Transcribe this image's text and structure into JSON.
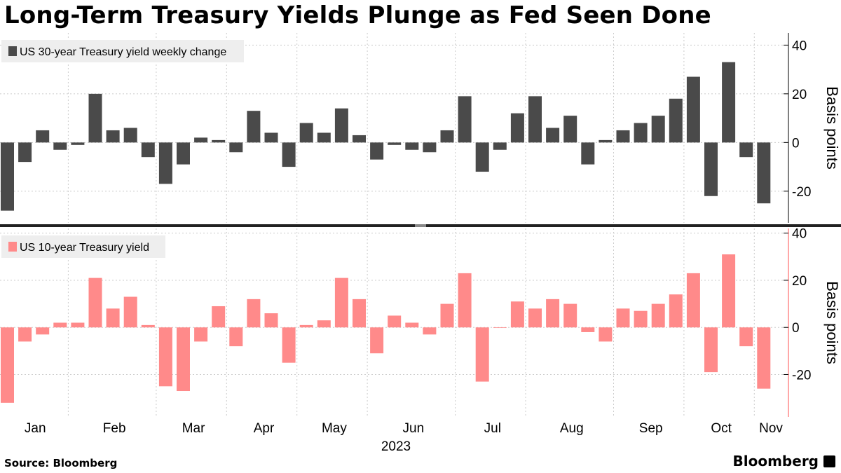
{
  "title": "Long-Term Treasury Yields Plunge as Fed Seen Done",
  "source": "Source:  Bloomberg",
  "brand": "Bloomberg",
  "colors": {
    "top_bars": "#4a4a4a",
    "bottom_bars": "#ff8a8a",
    "grid": "#cccccc",
    "legend_bg": "#eeeeee",
    "divider": "#222222"
  },
  "chart_data": [
    {
      "type": "bar",
      "legend": "US 30-year Treasury yield weekly change",
      "ylabel": "Basis points",
      "ylim": [
        -33,
        45
      ],
      "yticks": [
        -20,
        0,
        20,
        40
      ],
      "values": [
        -28,
        -8,
        5,
        -3,
        -1,
        20,
        5,
        6,
        -6,
        -17,
        -9,
        2,
        1,
        -4,
        13,
        4,
        -10,
        8,
        4,
        14,
        3,
        -7,
        -1,
        -3,
        -4,
        5,
        19,
        -12,
        -3,
        12,
        19,
        6,
        11,
        -9,
        1,
        5,
        8,
        11,
        18,
        27,
        -22,
        33,
        -6,
        -25
      ],
      "grid": true
    },
    {
      "type": "bar",
      "legend": "US 10-year Treasury yield",
      "ylabel": "Basis points",
      "ylim": [
        -38,
        42
      ],
      "yticks": [
        -20,
        0,
        20,
        40
      ],
      "values": [
        -32,
        -6,
        -3,
        2,
        2,
        21,
        8,
        13,
        1,
        -25,
        -27,
        -6,
        9,
        -8,
        12,
        6,
        -15,
        1,
        3,
        21,
        12,
        -11,
        5,
        2,
        -3,
        10,
        23,
        -23,
        0,
        11,
        8,
        12,
        10,
        -2,
        -6,
        8,
        7,
        10,
        14,
        23,
        -19,
        31,
        -8,
        -26
      ],
      "grid": true
    }
  ],
  "x_axis": {
    "months": [
      "Jan",
      "Feb",
      "Mar",
      "Apr",
      "May",
      "Jun",
      "Jul",
      "Aug",
      "Sep",
      "Oct",
      "Nov"
    ],
    "year": "2023"
  }
}
